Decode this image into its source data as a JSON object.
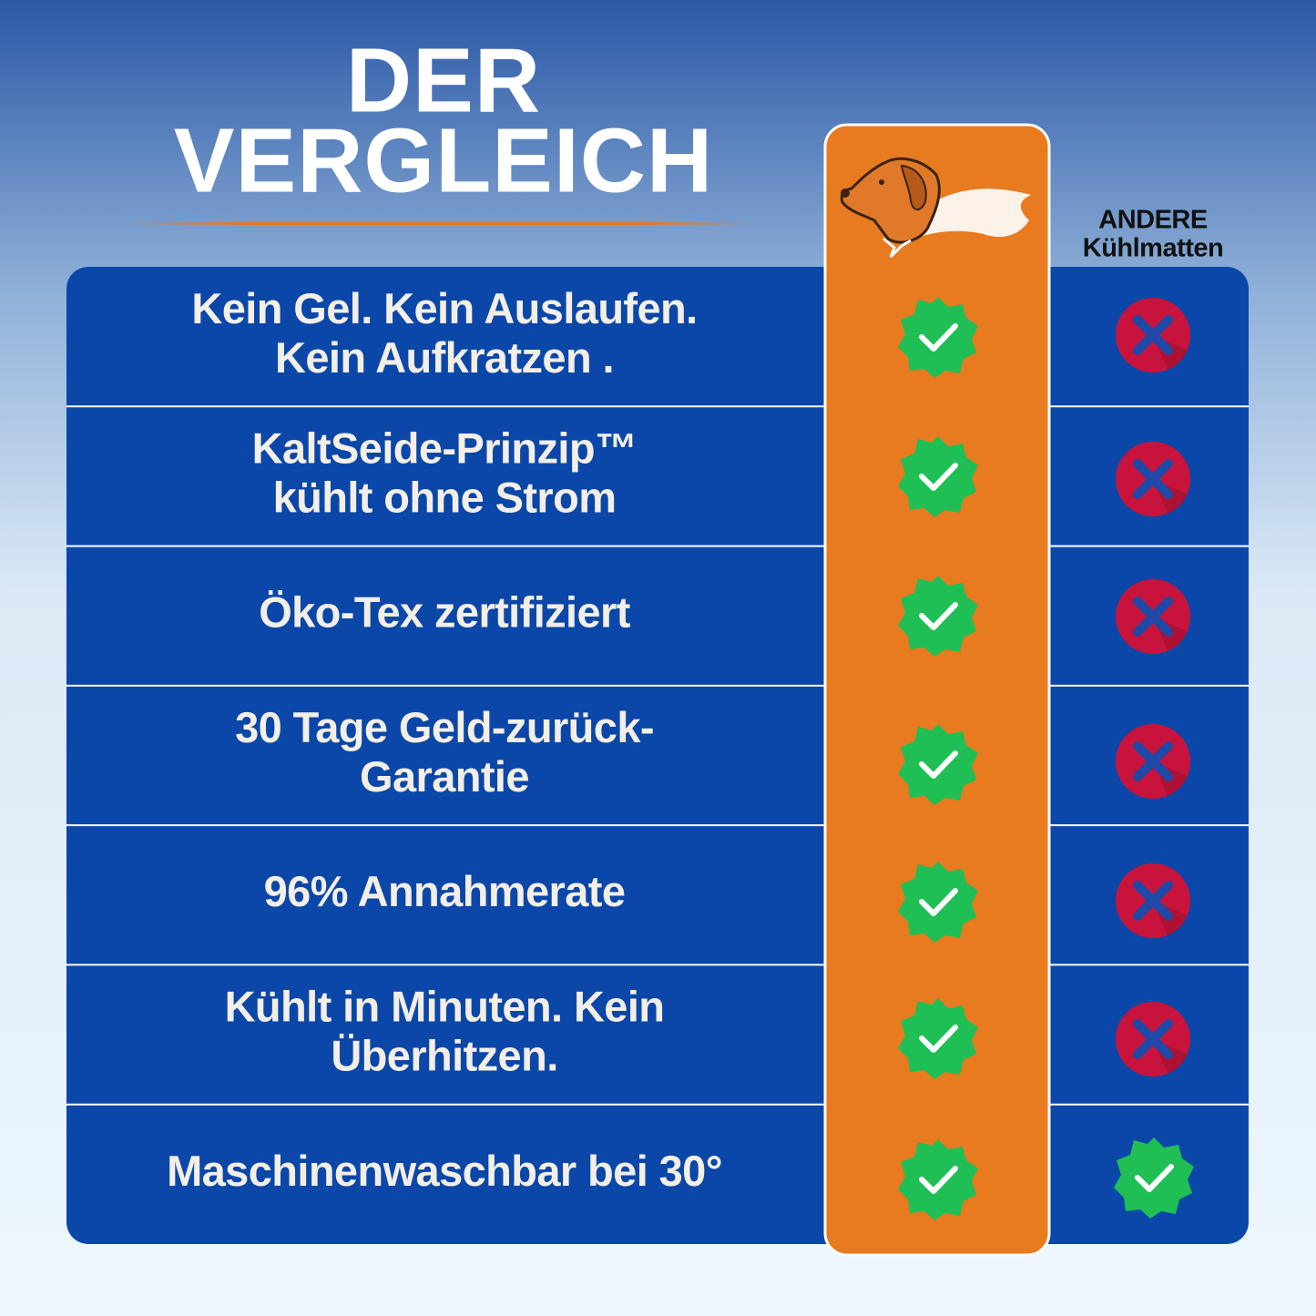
{
  "header": {
    "title_lines": [
      "DER",
      "VERGLEICH"
    ],
    "competitor_lines": [
      "ANDERE",
      "Kühlmatten"
    ]
  },
  "rows": [
    {
      "lines": [
        "Kein Gel. Kein Auslaufen.",
        "Kein Aufkratzen ."
      ]
    },
    {
      "lines": [
        "KaltSeide-Prinzip™",
        "kühlt ohne Strom"
      ]
    },
    {
      "lines": [
        "Öko-Tex zertifiziert"
      ]
    },
    {
      "lines": [
        "30 Tage Geld-zurück-",
        "Garantie"
      ]
    },
    {
      "lines": [
        "96% Annahmerate"
      ]
    },
    {
      "lines": [
        "Kühlt in Minuten. Kein",
        "Überhitzen."
      ]
    },
    {
      "lines": [
        "Maschinenwaschbar bei 30°"
      ]
    }
  ]
}
